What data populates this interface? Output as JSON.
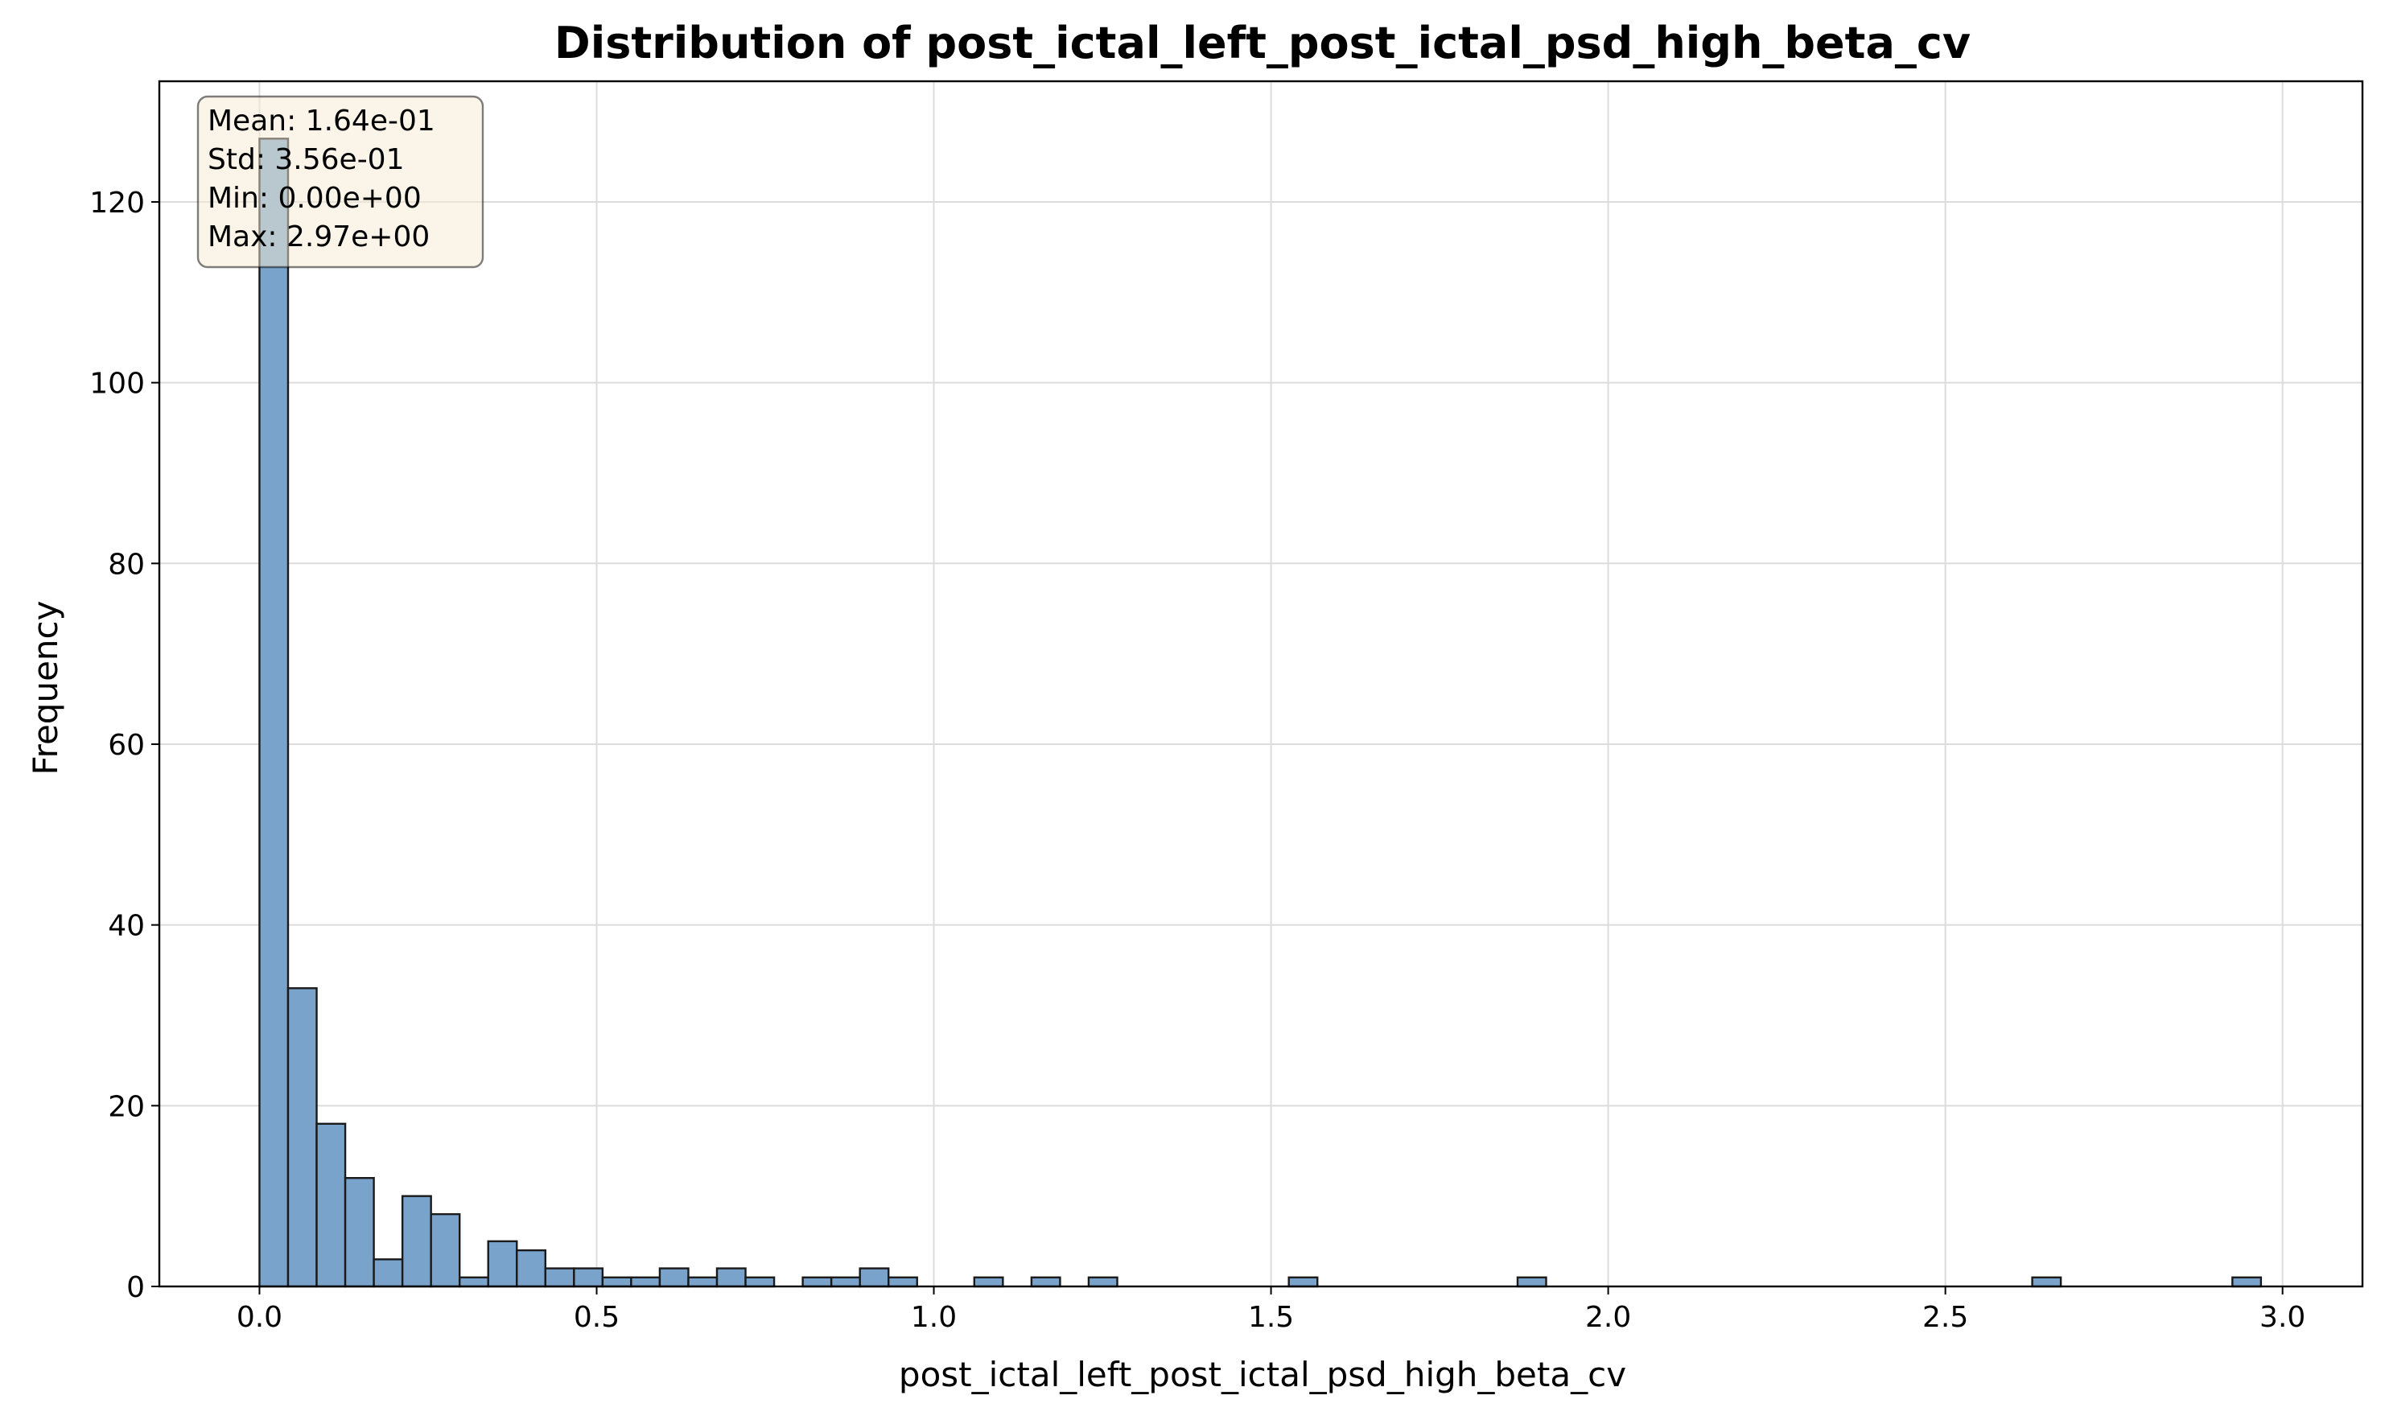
{
  "chart_data": {
    "type": "bar",
    "title": "Distribution of post_ictal_left_post_ictal_psd_high_beta_cv",
    "xlabel": "post_ictal_left_post_ictal_psd_high_beta_cv",
    "ylabel": "Frequency",
    "xlim": [
      -0.1485,
      3.1185
    ],
    "ylim": [
      0,
      133.35
    ],
    "xticks": [
      0.0,
      0.5,
      1.0,
      1.5,
      2.0,
      2.5,
      3.0
    ],
    "xtick_labels": [
      "0.0",
      "0.5",
      "1.0",
      "1.5",
      "2.0",
      "2.5",
      "3.0"
    ],
    "yticks": [
      0,
      20,
      40,
      60,
      80,
      100,
      120
    ],
    "ytick_labels": [
      "0",
      "20",
      "40",
      "60",
      "80",
      "100",
      "120"
    ],
    "grid": true,
    "bin_start": 0.0,
    "bin_width": 0.0424,
    "counts": [
      127,
      33,
      18,
      12,
      3,
      10,
      8,
      1,
      5,
      4,
      2,
      2,
      1,
      1,
      2,
      1,
      2,
      1,
      0,
      1,
      1,
      2,
      1,
      0,
      0,
      1,
      0,
      1,
      0,
      1,
      0,
      0,
      0,
      0,
      0,
      0,
      1,
      0,
      0,
      0,
      0,
      0,
      0,
      0,
      1,
      0,
      0,
      0,
      0,
      0,
      0,
      0,
      0,
      0,
      0,
      0,
      0,
      0,
      0,
      0,
      0,
      0,
      1,
      0,
      0,
      0,
      0,
      0,
      0,
      1
    ],
    "bar_color": "#7aa3cb",
    "bar_edge_color": "#1a1a1a",
    "stats": [
      "Mean: 1.64e-01",
      "Std: 3.56e-01",
      "Min: 0.00e+00",
      "Max: 2.97e+00"
    ],
    "stats_box_color": "#f7ebd3",
    "stats_box_location": "top-left"
  }
}
